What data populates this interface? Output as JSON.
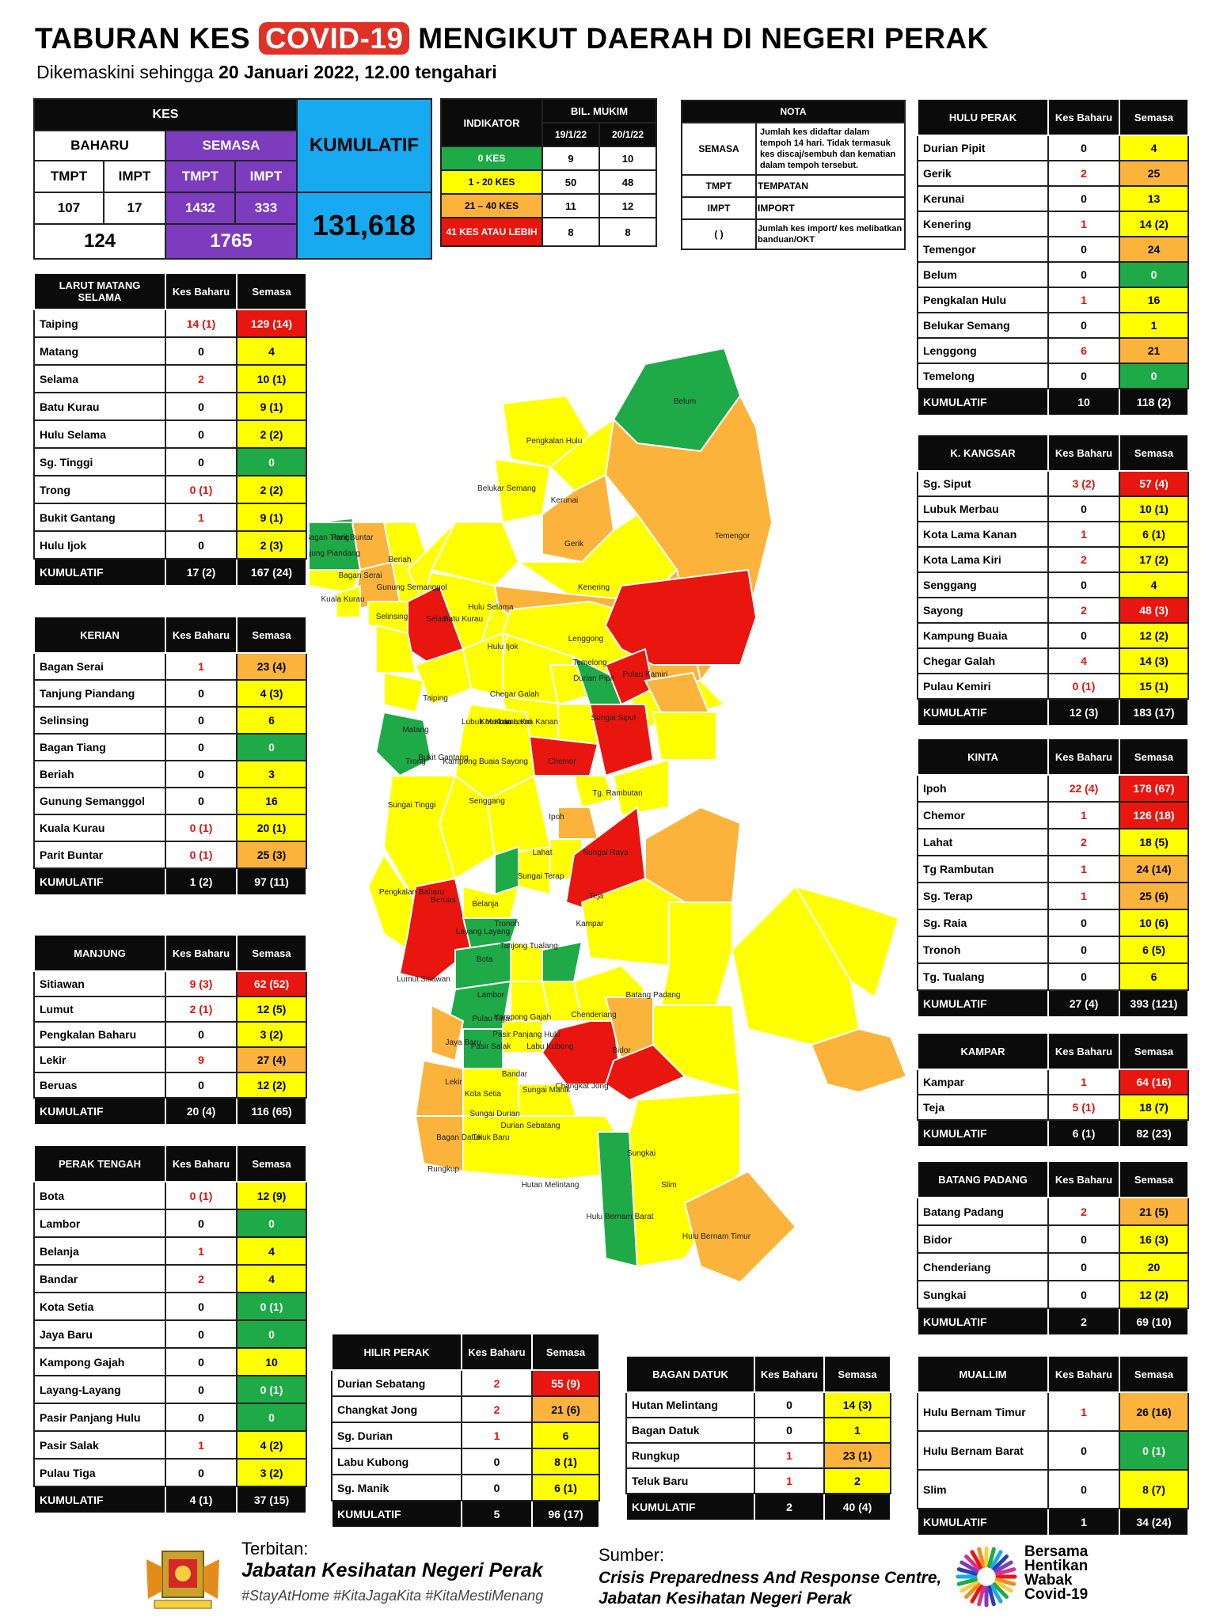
{
  "title": {
    "pre": "TABURAN KES ",
    "highlight": "COVID-19",
    "post": " MENGIKUT DAERAH DI NEGERI PERAK"
  },
  "subtitle": {
    "pre": "Dikemaskini sehingga ",
    "bold": "20 Januari 2022, 12.00 tengahari"
  },
  "kes": {
    "header": "KES",
    "baharu": "BAHARU",
    "semasa": "SEMASA",
    "kumulatif": "KUMULATIF",
    "tmpt": "TMPT",
    "impt": "IMPT",
    "baharu_tmpt": "107",
    "baharu_impt": "17",
    "semasa_tmpt": "1432",
    "semasa_impt": "333",
    "baharu_total": "124",
    "semasa_total": "1765",
    "kumulatif_total": "131,618"
  },
  "indikator": {
    "header": "INDIKATOR",
    "bil": "BIL. MUKIM",
    "d1": "19/1/22",
    "d2": "20/1/22",
    "rows": [
      {
        "label": "0 KES",
        "a": "9",
        "b": "10",
        "color": "#1eaa47"
      },
      {
        "label": "1 - 20 KES",
        "a": "50",
        "b": "48",
        "color": "#ffff00"
      },
      {
        "label": "21 – 40 KES",
        "a": "11",
        "b": "12",
        "color": "#fbb33b"
      },
      {
        "label": "41 KES ATAU LEBIH",
        "a": "8",
        "b": "8",
        "color": "#e8160f"
      }
    ]
  },
  "nota": {
    "header": "NOTA",
    "semasa_k": "SEMASA",
    "semasa_v": "Jumlah kes didaftar dalam tempoh 14 hari. Tidak termasuk kes discaj/sembuh dan kematian dalam tempoh tersebut.",
    "tmpt_k": "TMPT",
    "tmpt_v": "TEMPATAN",
    "impt_k": "IMPT",
    "impt_v": "IMPORT",
    "par_k": "(   )",
    "par_v": "Jumlah kes import/ kes melibatkan banduan/OKT"
  },
  "col_kes": "Kes Baharu",
  "col_semasa": "Semasa",
  "kumulatif_label": "KUMULATIF",
  "districts": {
    "larut": {
      "name": "LARUT MATANG SELAMA",
      "rows": [
        [
          "Taiping",
          "14 (1)",
          "129 (14)",
          "r",
          "red"
        ],
        [
          "Matang",
          "0",
          "4",
          "y",
          ""
        ],
        [
          "Selama",
          "2",
          "10 (1)",
          "y",
          "red"
        ],
        [
          "Batu Kurau",
          "0",
          "9 (1)",
          "y",
          ""
        ],
        [
          "Hulu Selama",
          "0",
          "2 (2)",
          "y",
          ""
        ],
        [
          "Sg. Tinggi",
          "0",
          "0",
          "g",
          ""
        ],
        [
          "Trong",
          "0 (1)",
          "2 (2)",
          "y",
          "red"
        ],
        [
          "Bukit Gantang",
          "1",
          "9 (1)",
          "y",
          "red"
        ],
        [
          "Hulu Ijok",
          "0",
          "2 (3)",
          "y",
          ""
        ]
      ],
      "total": [
        "17 (2)",
        "167 (24)"
      ]
    },
    "kerian": {
      "name": "KERIAN",
      "rows": [
        [
          "Bagan Serai",
          "1",
          "23 (4)",
          "o",
          "red"
        ],
        [
          "Tanjung Piandang",
          "0",
          "4 (3)",
          "y",
          ""
        ],
        [
          "Selinsing",
          "0",
          "6",
          "y",
          ""
        ],
        [
          "Bagan Tiang",
          "0",
          "0",
          "g",
          ""
        ],
        [
          "Beriah",
          "0",
          "3",
          "y",
          ""
        ],
        [
          "Gunung Semanggol",
          "0",
          "16",
          "y",
          ""
        ],
        [
          "Kuala Kurau",
          "0 (1)",
          "20 (1)",
          "y",
          "red"
        ],
        [
          "Parit Buntar",
          "0 (1)",
          "25 (3)",
          "o",
          "red"
        ]
      ],
      "total": [
        "1 (2)",
        "97 (11)"
      ]
    },
    "manjung": {
      "name": "MANJUNG",
      "rows": [
        [
          "Sitiawan",
          "9 (3)",
          "62 (52)",
          "r",
          "red"
        ],
        [
          "Lumut",
          "2 (1)",
          "12 (5)",
          "y",
          "red"
        ],
        [
          "Pengkalan Baharu",
          "0",
          "3 (2)",
          "y",
          ""
        ],
        [
          "Lekir",
          "9",
          "27 (4)",
          "o",
          "red"
        ],
        [
          "Beruas",
          "0",
          "12 (2)",
          "y",
          ""
        ]
      ],
      "total": [
        "20 (4)",
        "116 (65)"
      ]
    },
    "tengah": {
      "name": "PERAK TENGAH",
      "rows": [
        [
          "Bota",
          "0 (1)",
          "12 (9)",
          "y",
          "red"
        ],
        [
          "Lambor",
          "0",
          "0",
          "g",
          ""
        ],
        [
          "Belanja",
          "1",
          "4",
          "y",
          "red"
        ],
        [
          "Bandar",
          "2",
          "4",
          "y",
          "red"
        ],
        [
          "Kota Setia",
          "0",
          "0 (1)",
          "g",
          ""
        ],
        [
          "Jaya Baru",
          "0",
          "0",
          "g",
          ""
        ],
        [
          "Kampong Gajah",
          "0",
          "10",
          "y",
          ""
        ],
        [
          "Layang-Layang",
          "0",
          "0 (1)",
          "g",
          ""
        ],
        [
          "Pasir Panjang Hulu",
          "0",
          "0",
          "g",
          ""
        ],
        [
          "Pasir Salak",
          "1",
          "4 (2)",
          "y",
          "red"
        ],
        [
          "Pulau Tiga",
          "0",
          "3 (2)",
          "y",
          ""
        ]
      ],
      "total": [
        "4 (1)",
        "37 (15)"
      ]
    },
    "hilir": {
      "name": "HILIR PERAK",
      "rows": [
        [
          "Durian Sebatang",
          "2",
          "55 (9)",
          "r",
          "red"
        ],
        [
          "Changkat Jong",
          "2",
          "21 (6)",
          "o",
          "red"
        ],
        [
          "Sg. Durian",
          "1",
          "6",
          "y",
          "red"
        ],
        [
          "Labu Kubong",
          "0",
          "8 (1)",
          "y",
          ""
        ],
        [
          "Sg. Manik",
          "0",
          "6 (1)",
          "y",
          ""
        ]
      ],
      "total": [
        "5",
        "96 (17)"
      ]
    },
    "bagan": {
      "name": "BAGAN DATUK",
      "rows": [
        [
          "Hutan Melintang",
          "0",
          "14 (3)",
          "y",
          ""
        ],
        [
          "Bagan Datuk",
          "0",
          "1",
          "y",
          ""
        ],
        [
          "Rungkup",
          "1",
          "23 (1)",
          "o",
          "red"
        ],
        [
          "Teluk Baru",
          "1",
          "2",
          "y",
          "red"
        ]
      ],
      "total": [
        "2",
        "40 (4)"
      ]
    },
    "hulu": {
      "name": "HULU PERAK",
      "rows": [
        [
          "Durian Pipit",
          "0",
          "4",
          "y",
          ""
        ],
        [
          "Gerik",
          "2",
          "25",
          "o",
          "red"
        ],
        [
          "Kerunai",
          "0",
          "13",
          "y",
          ""
        ],
        [
          "Kenering",
          "1",
          "14 (2)",
          "y",
          "red"
        ],
        [
          "Temengor",
          "0",
          "24",
          "o",
          ""
        ],
        [
          "Belum",
          "0",
          "0",
          "g",
          ""
        ],
        [
          "Pengkalan Hulu",
          "1",
          "16",
          "y",
          "red"
        ],
        [
          "Belukar Semang",
          "0",
          "1",
          "y",
          ""
        ],
        [
          "Lenggong",
          "6",
          "21",
          "o",
          "red"
        ],
        [
          "Temelong",
          "0",
          "0",
          "g",
          ""
        ]
      ],
      "total": [
        "10",
        "118 (2)"
      ]
    },
    "kangsar": {
      "name": "K. KANGSAR",
      "rows": [
        [
          "Sg. Siput",
          "3 (2)",
          "57 (4)",
          "r",
          "red"
        ],
        [
          "Lubuk Merbau",
          "0",
          "10 (1)",
          "y",
          ""
        ],
        [
          "Kota Lama Kanan",
          "1",
          "6 (1)",
          "y",
          "red"
        ],
        [
          "Kota Lama Kiri",
          "2",
          "17 (2)",
          "y",
          "red"
        ],
        [
          "Senggang",
          "0",
          "4",
          "y",
          ""
        ],
        [
          "Sayong",
          "2",
          "48 (3)",
          "r",
          "red"
        ],
        [
          "Kampung Buaia",
          "0",
          "12 (2)",
          "y",
          ""
        ],
        [
          "Chegar Galah",
          "4",
          "14 (3)",
          "y",
          "red"
        ],
        [
          "Pulau Kemiri",
          "0 (1)",
          "15 (1)",
          "y",
          "red"
        ]
      ],
      "total": [
        "12 (3)",
        "183 (17)"
      ]
    },
    "kinta": {
      "name": "KINTA",
      "rows": [
        [
          "Ipoh",
          "22 (4)",
          "178 (67)",
          "r",
          "red"
        ],
        [
          "Chemor",
          "1",
          "126 (18)",
          "r",
          "red"
        ],
        [
          "Lahat",
          "2",
          "18 (5)",
          "y",
          "red"
        ],
        [
          "Tg Rambutan",
          "1",
          "24 (14)",
          "o",
          "red"
        ],
        [
          "Sg. Terap",
          "1",
          "25 (6)",
          "o",
          "red"
        ],
        [
          "Sg. Raia",
          "0",
          "10 (6)",
          "y",
          ""
        ],
        [
          "Tronoh",
          "0",
          "6 (5)",
          "y",
          ""
        ],
        [
          "Tg. Tualang",
          "0",
          "6",
          "y",
          ""
        ]
      ],
      "total": [
        "27 (4)",
        "393 (121)"
      ]
    },
    "kampar": {
      "name": "KAMPAR",
      "rows": [
        [
          "Kampar",
          "1",
          "64 (16)",
          "r",
          "red"
        ],
        [
          "Teja",
          "5 (1)",
          "18 (7)",
          "y",
          "red"
        ]
      ],
      "total": [
        "6 (1)",
        "82 (23)"
      ]
    },
    "batang": {
      "name": "BATANG PADANG",
      "rows": [
        [
          "Batang Padang",
          "2",
          "21 (5)",
          "o",
          "red"
        ],
        [
          "Bidor",
          "0",
          "16 (3)",
          "y",
          ""
        ],
        [
          "Chenderiang",
          "0",
          "20",
          "y",
          ""
        ],
        [
          "Sungkai",
          "0",
          "12 (2)",
          "y",
          ""
        ]
      ],
      "total": [
        "2",
        "69 (10)"
      ]
    },
    "muallim": {
      "name": "MUALLIM",
      "rows": [
        [
          "Hulu Bernam Timur",
          "1",
          "26 (16)",
          "o",
          "red"
        ],
        [
          "Hulu Bernam Barat",
          "0",
          "0 (1)",
          "g",
          ""
        ],
        [
          "Slim",
          "0",
          "8 (7)",
          "y",
          ""
        ]
      ],
      "total": [
        "1",
        "34 (24)"
      ]
    }
  },
  "map_labels": [
    "Belum",
    "Pengkalan Hulu",
    "Belukar Semang",
    "Kerunai",
    "Temengor",
    "Gerik",
    "Kenering",
    "Hulu Selama",
    "Selama",
    "Hulu Ijok",
    "Lenggong",
    "Bagan Tiang",
    "Parit Buntar",
    "Tanjung Piandang",
    "Beriah",
    "Bagan Serai",
    "Gunung Semanggol",
    "Batu Kurau",
    "Temelong",
    "Durian Pipit",
    "Pulau Kamiri",
    "Kuala Kurau",
    "Selinsing",
    "Chegar Galah",
    "Taiping",
    "Lubuk Merbau",
    "Kota Lama Kiri",
    "Kota Lama Kanan",
    "Sungai Siput",
    "Matang",
    "Bukit Gantang",
    "Kampong Buaia",
    "Sayong",
    "Chemor",
    "Trong",
    "Tg. Rambutan",
    "Senggang",
    "Sungai Tinggi",
    "Ipoh",
    "Sungai Raya",
    "Lahat",
    "Sungai Terap",
    "Teja",
    "Belanja",
    "Beruas",
    "Pengkalan Baharu",
    "Layang Layang",
    "Tronoh",
    "Kampar",
    "Tanjong Tualang",
    "Bota",
    "Lumut",
    "Sitiawan",
    "Lambor",
    "Batang Padang",
    "Chenderiang",
    "Pulau Tiga",
    "Kampong Gajah",
    "Pasir Panjang Hulu",
    "Jaya Baru",
    "Pasir Salak",
    "Labu Kubong",
    "Bidor",
    "Bandar",
    "Lekir",
    "Kota Setia",
    "Sungai Manik",
    "Sungai Durian",
    "Changkat Jong",
    "Durian Sebatang",
    "Bagan Datuk",
    "Teluk Baru",
    "Sungkai",
    "Rungkup",
    "Slim",
    "Hutan Melintang",
    "Hulu Bernam Barat",
    "Hulu Bernam Timur"
  ],
  "footer": {
    "terbitan": "Terbitan:",
    "jabatan": "Jabatan Kesihatan Negeri Perak",
    "tags": "#StayAtHome #KitaJagaKita #KitaMestiMenang",
    "sumber": "Sumber:",
    "src1": "Crisis Preparedness And Response Centre,",
    "src2": "Jabatan Kesihatan Negeri Perak",
    "campaign": [
      "Bersama",
      "Hentikan",
      "Wabak",
      "Covid-19"
    ]
  }
}
